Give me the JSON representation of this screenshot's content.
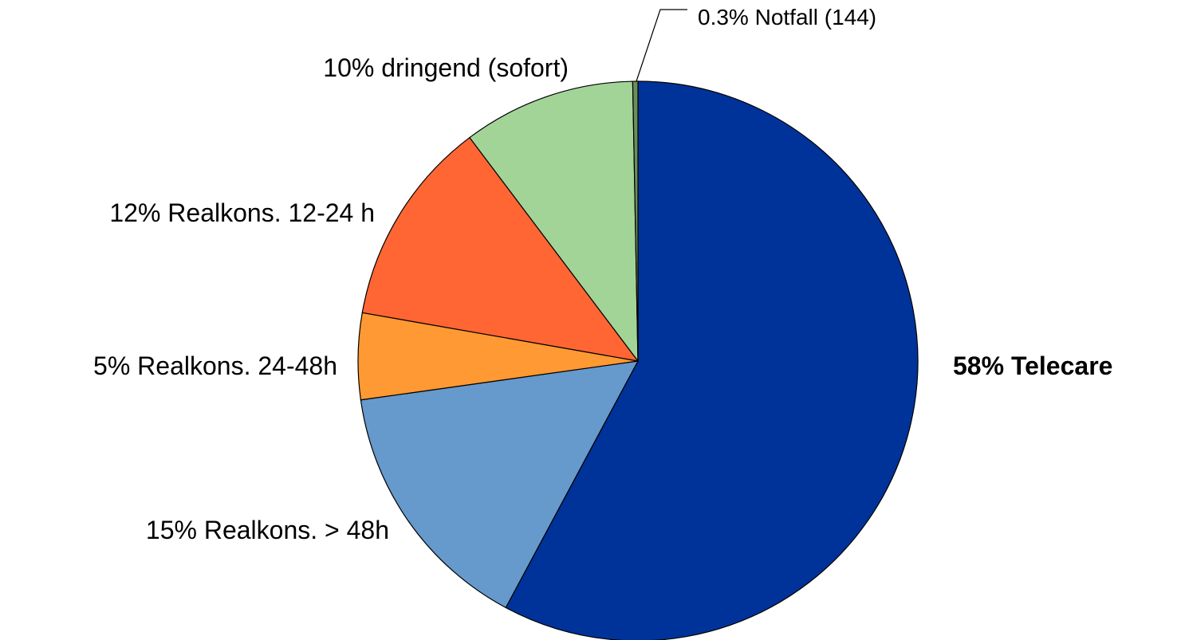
{
  "chart_data": {
    "type": "pie",
    "categories": [
      "Telecare",
      "Realkons. > 48h",
      "Realkons. 24-48h",
      "Realkons. 12-24 h",
      "dringend (sofort)",
      "Notfall (144)"
    ],
    "values": [
      58,
      15,
      5,
      12,
      10,
      0.3
    ],
    "value_labels": [
      "58%",
      "15%",
      "5%",
      "12%",
      "10%",
      "0.3%"
    ],
    "colors": [
      "#003399",
      "#6699cc",
      "#ff9933",
      "#ff6633",
      "#a3d497",
      "#6b8e5a"
    ]
  }
}
